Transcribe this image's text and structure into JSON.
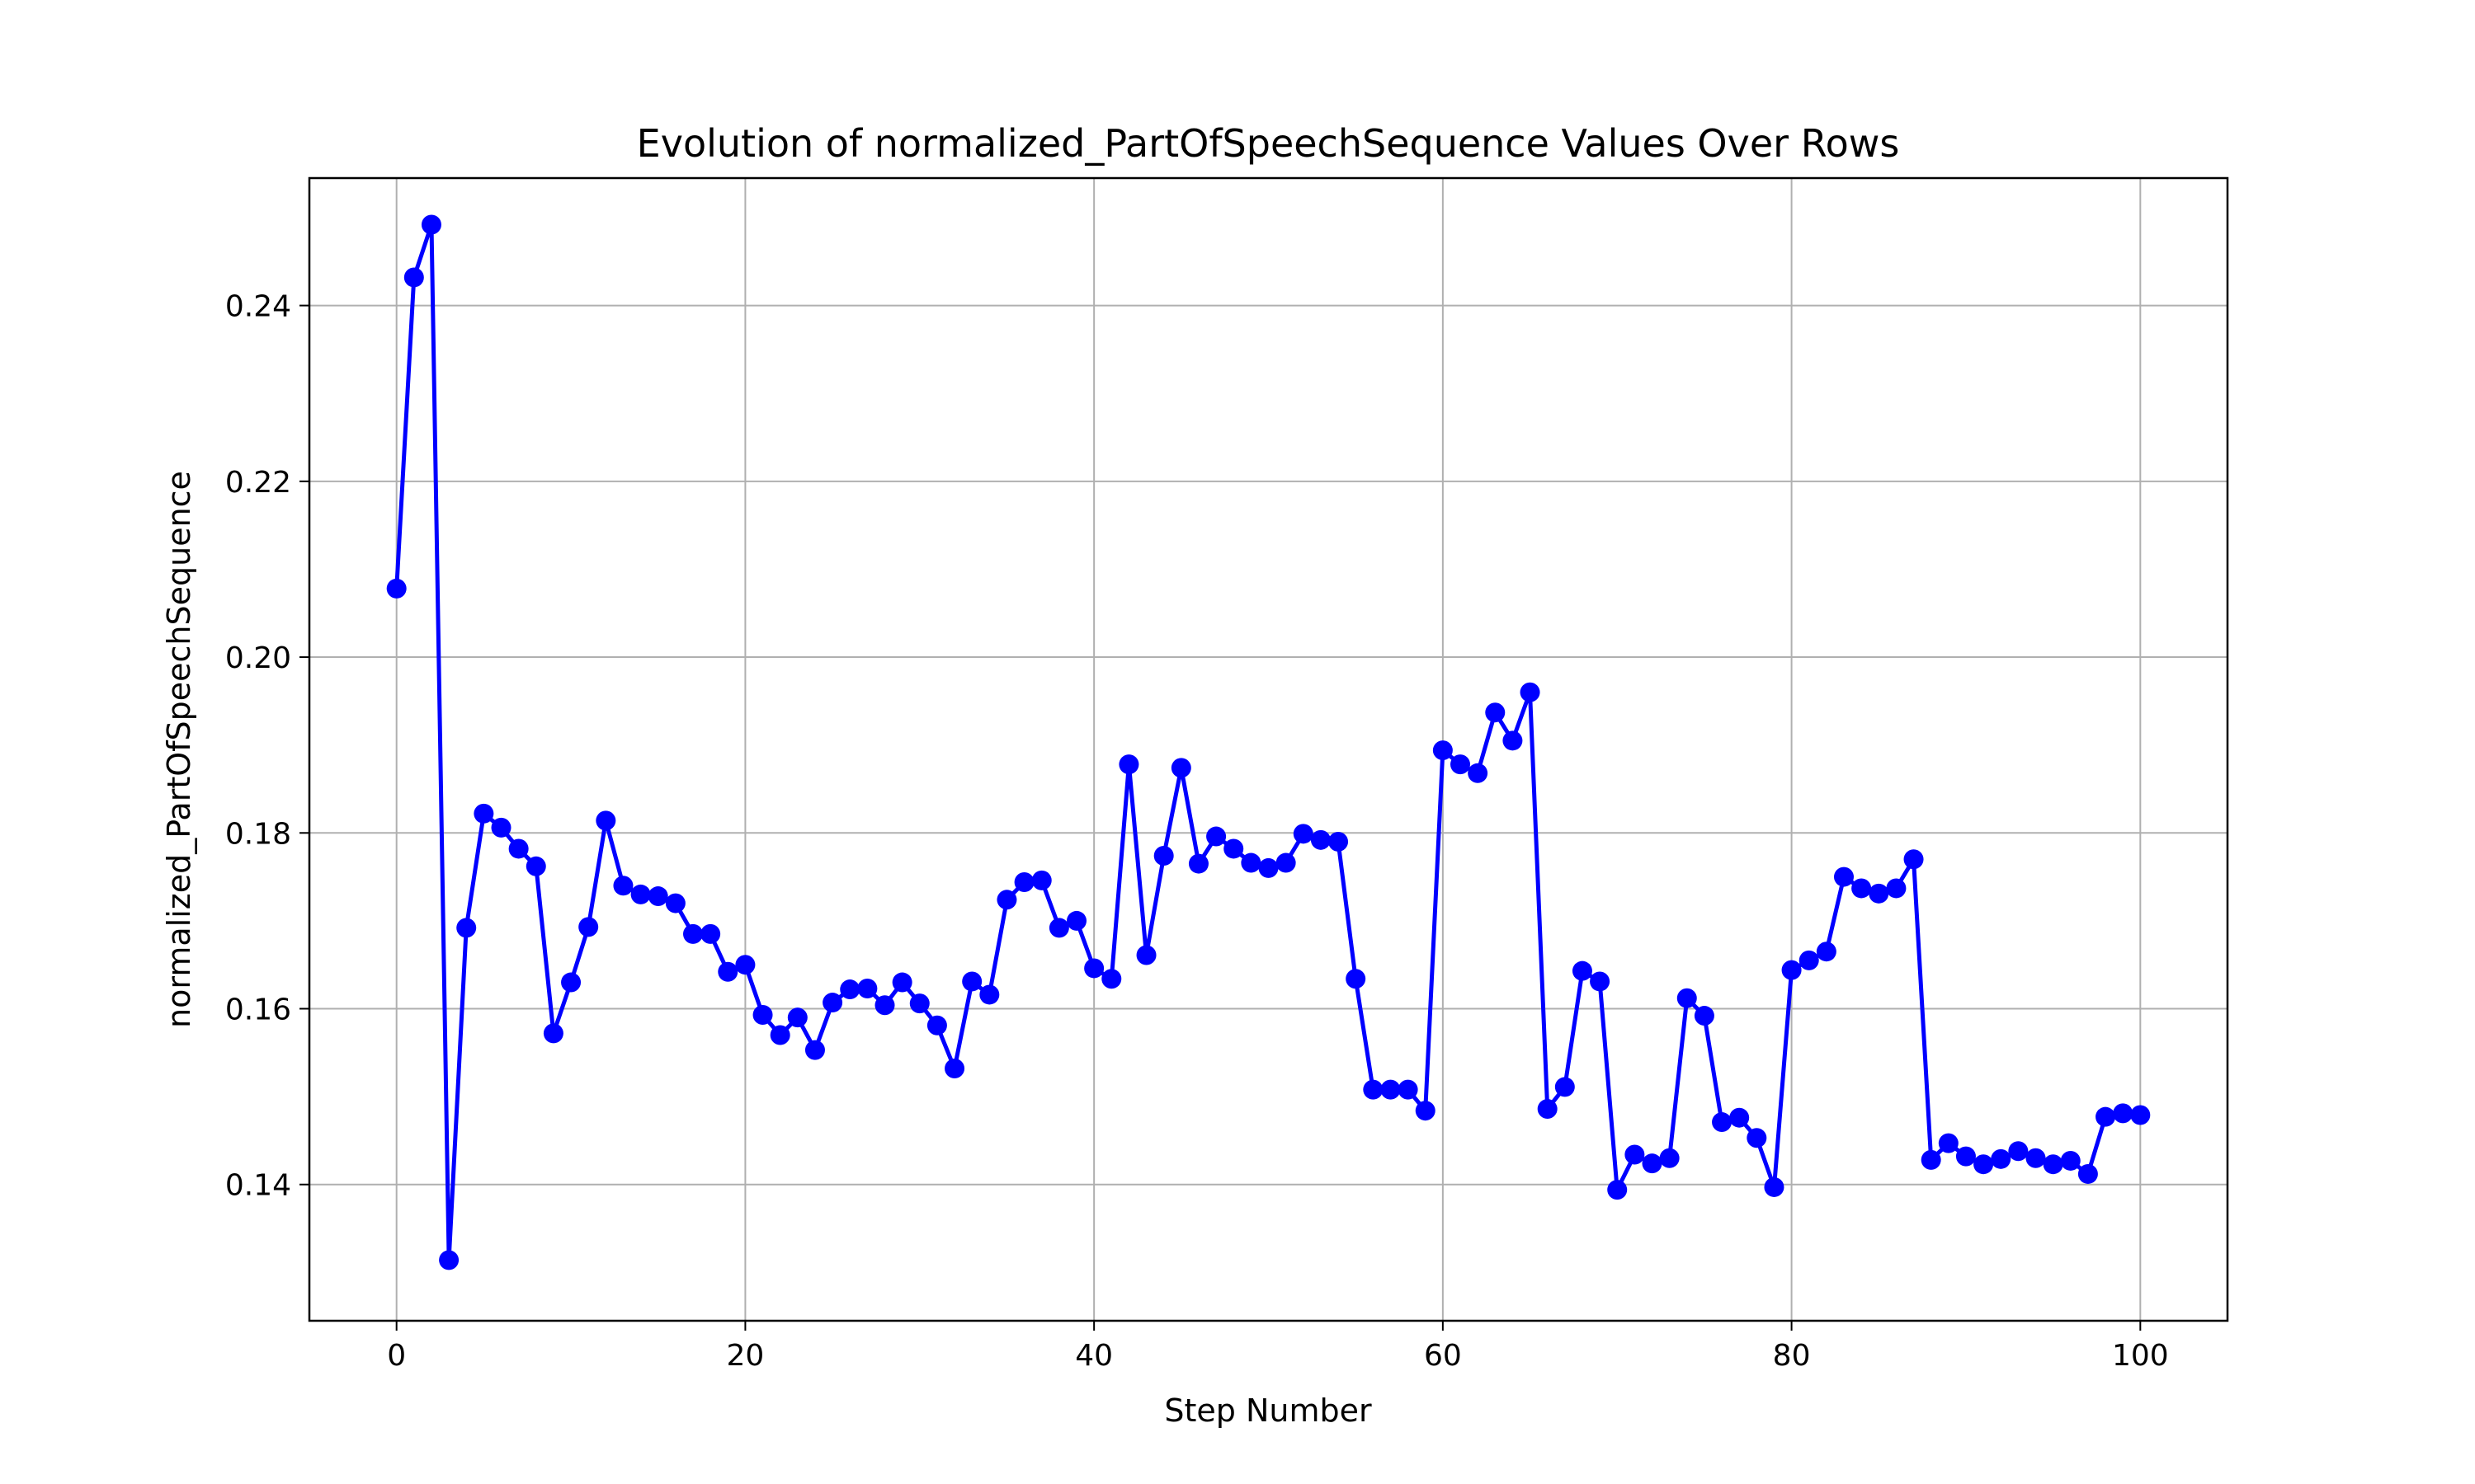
{
  "chart_data": {
    "type": "line",
    "title": "Evolution of normalized_PartOfSpeechSequence Values Over Rows",
    "xlabel": "Step Number",
    "ylabel": "normalized_PartOfSpeechSequence",
    "xlim": [
      -5,
      105
    ],
    "ylim": [
      0.1245,
      0.2545
    ],
    "xticks": [
      0,
      20,
      40,
      60,
      80,
      100
    ],
    "xtick_labels": [
      "0",
      "20",
      "40",
      "60",
      "80",
      "100"
    ],
    "yticks": [
      0.14,
      0.16,
      0.18,
      0.2,
      0.22,
      0.24
    ],
    "ytick_labels": [
      "0.14",
      "0.16",
      "0.18",
      "0.20",
      "0.22",
      "0.24"
    ],
    "grid": true,
    "legend": "none",
    "series_color": "#0000ff",
    "marker": "circle",
    "series": [
      {
        "x": [
          0,
          1,
          2,
          3,
          4,
          5,
          6,
          7,
          8,
          9,
          10,
          11,
          12,
          13,
          14,
          15,
          16,
          17,
          18,
          19,
          20,
          21,
          22,
          23,
          24,
          25,
          26,
          27,
          28,
          29,
          30,
          31,
          32,
          33,
          34,
          35,
          36,
          37,
          38,
          39,
          40,
          41,
          42,
          43,
          44,
          45,
          46,
          47,
          48,
          49,
          50,
          51,
          52,
          53,
          54,
          55,
          56,
          57,
          58,
          59,
          60,
          61,
          62,
          63,
          64,
          65,
          66,
          67,
          68,
          69,
          70,
          71,
          72,
          73,
          74,
          75,
          76,
          77,
          78,
          79,
          80,
          81,
          82,
          83,
          84,
          85,
          86,
          87,
          88,
          89,
          90,
          91,
          92,
          93,
          94,
          95,
          96,
          97,
          98,
          99,
          100
        ],
        "values": [
          0.2078,
          0.2432,
          0.2492,
          0.1314,
          0.1692,
          0.1822,
          0.1806,
          0.1782,
          0.1762,
          0.1572,
          0.163,
          0.1693,
          0.1814,
          0.174,
          0.173,
          0.1728,
          0.172,
          0.1685,
          0.1685,
          0.1642,
          0.165,
          0.1593,
          0.157,
          0.159,
          0.1553,
          0.1607,
          0.1622,
          0.1623,
          0.1604,
          0.163,
          0.1606,
          0.1581,
          0.1532,
          0.1631,
          0.1616,
          0.1724,
          0.1744,
          0.1746,
          0.1692,
          0.17,
          0.1646,
          0.1634,
          0.1878,
          0.1661,
          0.1774,
          0.1874,
          0.1765,
          0.1796,
          0.1782,
          0.1766,
          0.176,
          0.1766,
          0.1799,
          0.1792,
          0.179,
          0.1634,
          0.1508,
          0.1508,
          0.1508,
          0.1484,
          0.1894,
          0.1878,
          0.1868,
          0.1937,
          0.1905,
          0.196,
          0.1486,
          0.1511,
          0.1643,
          0.1631,
          0.1394,
          0.1434,
          0.1424,
          0.143,
          0.1612,
          0.1592,
          0.1471,
          0.1476,
          0.1453,
          0.1397,
          0.1644,
          0.1655,
          0.1665,
          0.175,
          0.1737,
          0.1731,
          0.1737,
          0.177,
          0.1428,
          0.1447,
          0.1432,
          0.1423,
          0.1429,
          0.1438,
          0.143,
          0.1423,
          0.1427,
          0.1412,
          0.1477,
          0.1481,
          0.1479
        ]
      }
    ]
  }
}
